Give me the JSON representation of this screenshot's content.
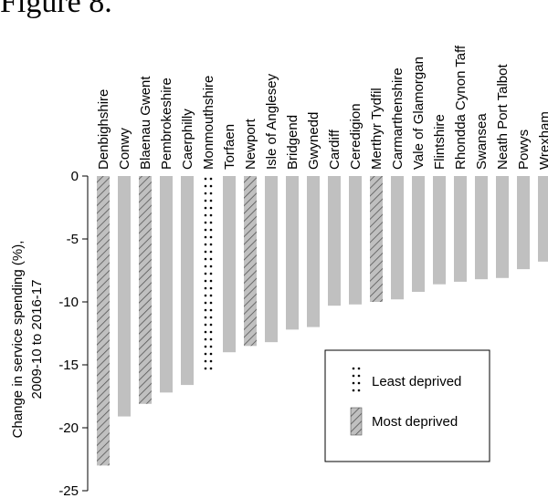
{
  "figure_title": "Figure 8.",
  "chart_data": {
    "type": "bar",
    "title": "Figure 8.",
    "xlabel": "",
    "ylabel_lines": [
      "Change in service spending (%),",
      "2009-10 to 2016-17"
    ],
    "ylim": [
      -25,
      0
    ],
    "yticks": [
      0,
      -5,
      -10,
      -15,
      -20,
      -25
    ],
    "grid": false,
    "legend_placement": "bottom-right",
    "colors": {
      "bar": "#c0c0c0",
      "dots": "#000000",
      "hatch": "#555555"
    },
    "categories": [
      "Denbighshire",
      "Conwy",
      "Blaenau Gwent",
      "Pembrokeshire",
      "Caerphilly",
      "Monmouthshire",
      "Torfaen",
      "Newport",
      "Isle of Anglesey",
      "Bridgend",
      "Gwynedd",
      "Cardiff",
      "Ceredigion",
      "Merthyr Tydfil",
      "Carmarthenshire",
      "Vale of Glamorgan",
      "Flintshire",
      "Rhondda Cynon Taff",
      "Swansea",
      "Neath Port Talbot",
      "Powys",
      "Wrexham"
    ],
    "values": [
      -23.0,
      -19.1,
      -18.1,
      -17.2,
      -16.6,
      -15.5,
      -14.0,
      -13.5,
      -13.2,
      -12.2,
      -12.0,
      -10.3,
      -10.2,
      -10.0,
      -9.8,
      -9.2,
      -8.6,
      -8.4,
      -8.2,
      -8.1,
      -7.4,
      -6.8
    ],
    "patterns": [
      "hatch",
      "solid",
      "hatch",
      "solid",
      "solid",
      "dots",
      "solid",
      "hatch",
      "solid",
      "solid",
      "solid",
      "solid",
      "solid",
      "hatch",
      "solid",
      "solid",
      "solid",
      "solid",
      "solid",
      "solid",
      "solid",
      "solid"
    ],
    "legend": [
      {
        "label": "Least deprived",
        "pattern": "dots"
      },
      {
        "label": "Most deprived",
        "pattern": "hatch"
      }
    ]
  }
}
